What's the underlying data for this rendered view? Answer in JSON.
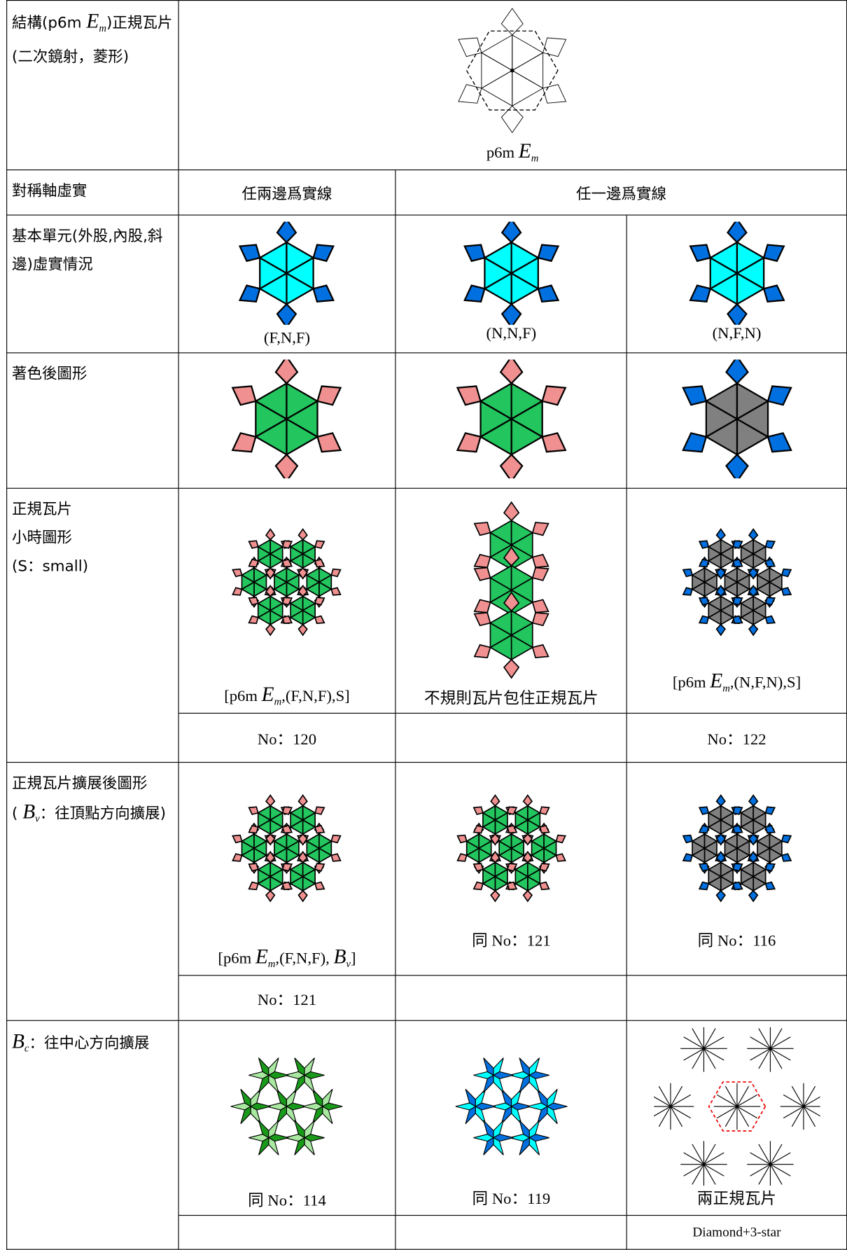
{
  "structure": {
    "label": [
      "結構(p6m",
      "E",
      "m",
      ")正規瓦片(二次鏡射，菱形)"
    ],
    "figure_caption": [
      "p6m",
      "E",
      "m"
    ]
  },
  "axis_row": {
    "label": "對稱軸虛實",
    "headers": [
      "任兩邊爲實線",
      "任一邊爲實線"
    ]
  },
  "basic_unit_row": {
    "label": "基本單元(外股,內股,斜邊)虛實情況",
    "captions": [
      "(F,N,F)",
      "(N,N,F)",
      "(N,F,N)"
    ]
  },
  "colored_row": {
    "label": "著色後圖形"
  },
  "small_row": {
    "label": [
      "正規瓦片",
      "小時圖形",
      "(S：small)"
    ],
    "captions": [
      [
        "[p6m",
        "E",
        "m",
        ",(F,N,F),S]"
      ],
      "不規則瓦片包住正規瓦片",
      [
        "[p6m",
        "E",
        "m",
        ",(N,F,N),S]"
      ]
    ],
    "numbers": [
      "No：120",
      "No：122"
    ]
  },
  "vertex_row": {
    "label": [
      "正規瓦片擴展後圖形",
      "(",
      "B",
      "v",
      "：往頂點方向擴展)"
    ],
    "captions": [
      [
        "[p6m",
        "E",
        "m",
        ",(F,N,F), ",
        "B",
        "v",
        "]"
      ],
      "同 No：121",
      "同 No：116"
    ],
    "numbers": [
      "No：121"
    ]
  },
  "center_row": {
    "label": [
      "B",
      "c",
      "：往中心方向擴展"
    ],
    "captions": [
      "同 No：114",
      "同 No：119",
      "兩正規瓦片"
    ],
    "numbers": [
      "Diamond+3-star"
    ]
  }
}
